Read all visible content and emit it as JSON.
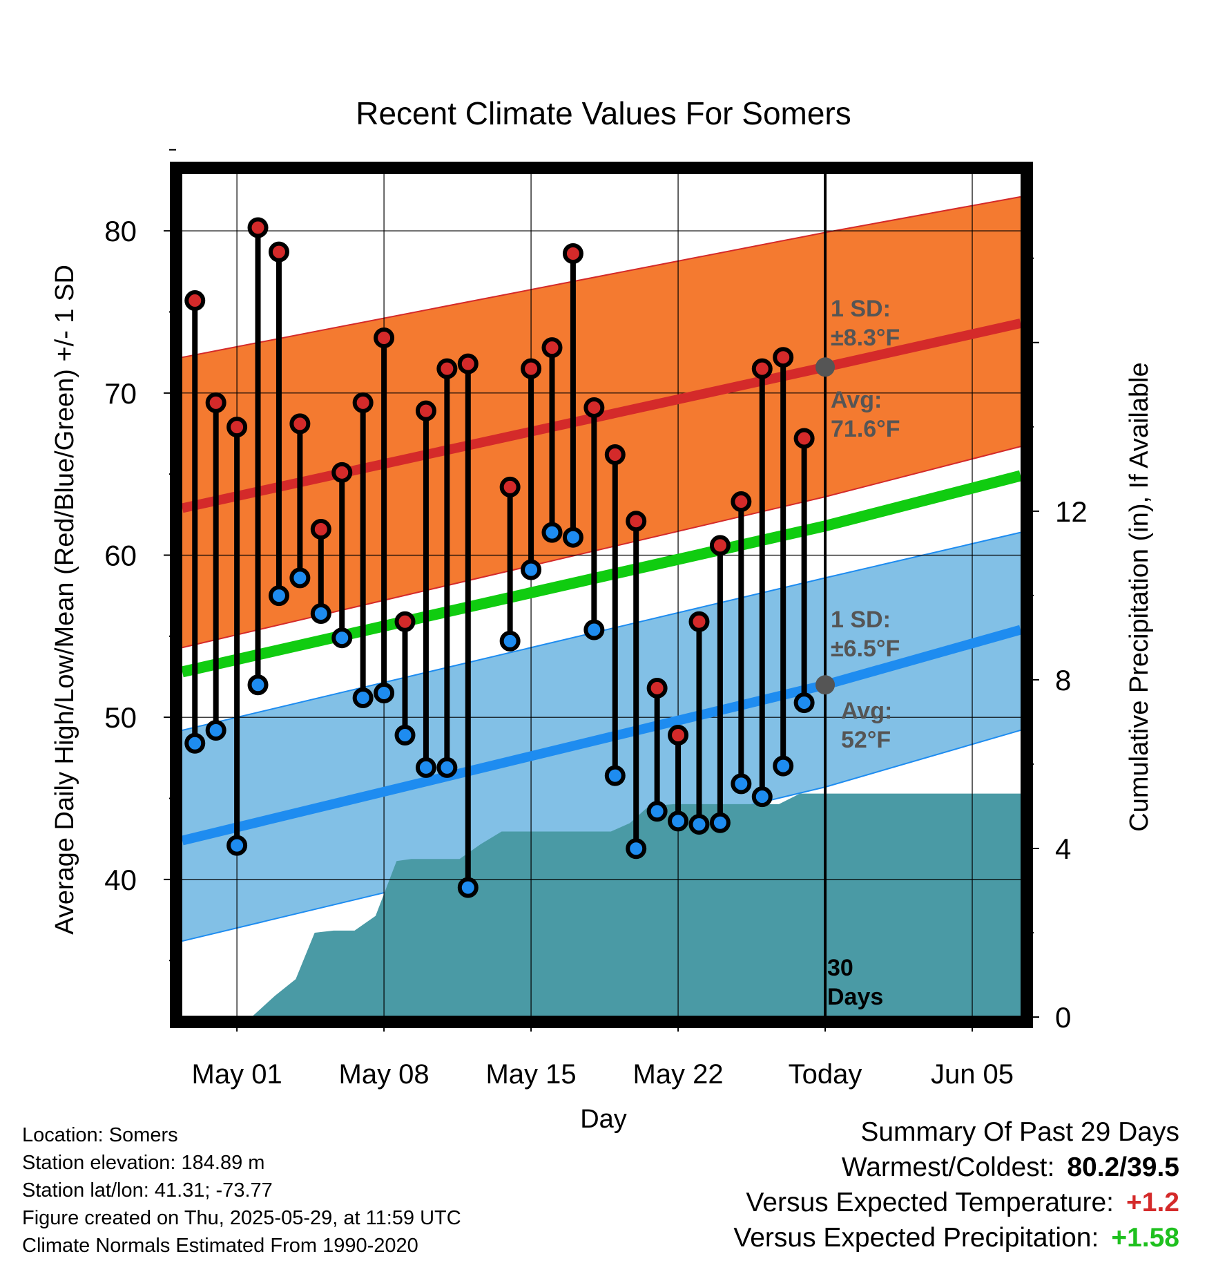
{
  "chart_data": {
    "type": "line",
    "title": "Recent Climate Values For Somers",
    "xlabel": "Day",
    "ylabel_left": "Average Daily High/Low/Mean (Red/Blue/Green) +/- 1 SD",
    "ylabel_right": "Cumulative Precipitation (in), If Available",
    "x_tick_labels": [
      "May 01",
      "May 08",
      "May 15",
      "May 22",
      "Today",
      "Jun 05"
    ],
    "x_tick_days": [
      2,
      9,
      16,
      23,
      30,
      37
    ],
    "xlim": [
      -0.6,
      39.3
    ],
    "ylim_left": [
      31.6,
      83.5
    ],
    "yticks_left": [
      40,
      50,
      60,
      70,
      80
    ],
    "ylim_right": [
      0,
      19.7
    ],
    "yticks_right": [
      0,
      4,
      8,
      12
    ],
    "grid": true,
    "today_day": 30,
    "days": [
      0,
      1,
      2,
      3,
      4,
      5,
      6,
      7,
      8,
      9,
      10,
      11,
      12,
      13,
      15,
      16,
      17,
      18,
      19,
      20,
      21,
      22,
      23,
      24,
      25,
      26,
      27,
      28,
      29
    ],
    "highs": [
      75.7,
      69.4,
      67.9,
      80.2,
      78.7,
      68.1,
      61.6,
      65.1,
      69.4,
      73.4,
      55.9,
      68.9,
      71.5,
      71.8,
      64.2,
      71.5,
      72.8,
      78.6,
      69.1,
      66.2,
      62.1,
      51.8,
      48.9,
      55.9,
      60.6,
      63.3,
      71.5,
      72.2,
      67.2
    ],
    "lows": [
      48.4,
      49.2,
      42.1,
      52.0,
      57.5,
      58.6,
      56.4,
      54.9,
      51.2,
      51.5,
      48.9,
      46.9,
      46.9,
      39.5,
      54.7,
      59.1,
      61.4,
      61.1,
      55.4,
      46.4,
      41.9,
      44.2,
      43.6,
      43.4,
      43.5,
      45.9,
      45.1,
      47.0,
      50.9
    ],
    "normals": {
      "days": [
        -0.6,
        30,
        39.3
      ],
      "avg_high": [
        62.9,
        71.6,
        74.3
      ],
      "high_upper": [
        72.2,
        79.9,
        82.1
      ],
      "high_lower": [
        54.3,
        63.6,
        66.7
      ],
      "avg_mean": [
        52.8,
        61.8,
        64.9
      ],
      "avg_low": [
        42.4,
        52.0,
        55.4
      ],
      "low_upper": [
        49.2,
        58.6,
        61.4
      ],
      "low_lower": [
        36.2,
        45.7,
        49.2
      ]
    },
    "precip": {
      "days": [
        2.7,
        3.8,
        4.8,
        5.7,
        6.6,
        7.6,
        8.6,
        9.6,
        10.3,
        11.5,
        12.6,
        13.6,
        14.6,
        15.8,
        18.7,
        19.8,
        20.7,
        21.6,
        22.8,
        23.8,
        24.8,
        25.8,
        26.8,
        27.8,
        28.8,
        29.8,
        39.3
      ],
      "cumulative": [
        0.0,
        0.5,
        0.9,
        2.0,
        2.05,
        2.05,
        2.4,
        3.7,
        3.75,
        3.75,
        3.75,
        4.1,
        4.4,
        4.4,
        4.4,
        4.4,
        4.6,
        5.0,
        5.05,
        5.05,
        5.05,
        5.05,
        5.05,
        5.05,
        5.3,
        5.3,
        5.3
      ]
    },
    "annotations": {
      "high_sd_label": "1 SD:",
      "high_sd_value": "±8.3°F",
      "high_avg_label": "Avg:",
      "high_avg_value": "71.6°F",
      "low_sd_label": "1 SD:",
      "low_sd_value": "±6.5°F",
      "low_avg_label": "Avg:",
      "low_avg_value": "52°F",
      "days_label_1": "30",
      "days_label_2": "Days"
    },
    "colors": {
      "high_band": "#f47a30",
      "high_line": "#d42a2a",
      "low_band": "#82c0e6",
      "low_line": "#1e8cf0",
      "mean_line": "#10cc10",
      "precip_fill": "#4a9aa5",
      "high_dot": "#d42a2a",
      "low_dot": "#1e8cf0",
      "annotation_text": "#555555"
    }
  },
  "footer": {
    "location": "Location: Somers",
    "elevation": "Station elevation: 184.89 m",
    "latlon": "Station lat/lon: 41.31; -73.77",
    "created": "Figure created on Thu, 2025-05-29, at 11:59 UTC",
    "normals": "Climate Normals Estimated From 1990-2020"
  },
  "summary": {
    "title": "Summary Of Past 29 Days",
    "warmest_label": "Warmest/Coldest:",
    "warmest_value": "80.2/39.5",
    "temp_label": "Versus Expected Temperature:",
    "temp_value": "+1.2",
    "precip_label": "Versus Expected Precipitation:",
    "precip_value": "+1.58"
  }
}
